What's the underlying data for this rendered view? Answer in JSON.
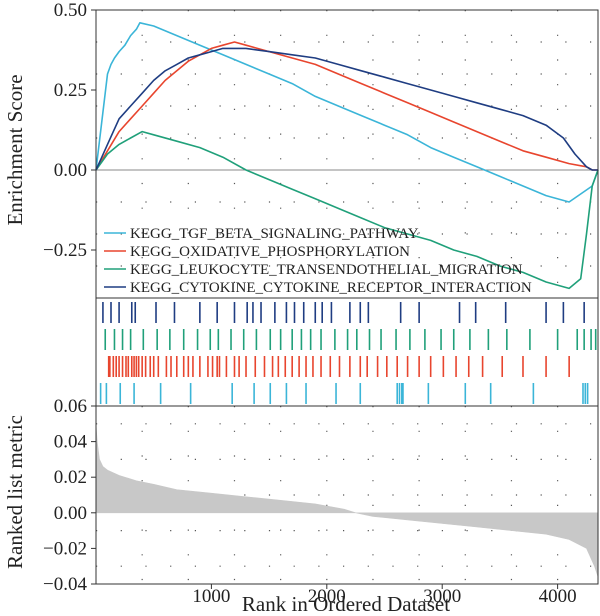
{
  "chart_data": [
    {
      "type": "line",
      "ylabel": "Enrichment Score",
      "xlim": [
        0,
        4350
      ],
      "ylim": [
        -0.4,
        0.5
      ],
      "yticks": [
        "0.50",
        "0.25",
        "0.00",
        "−0.25"
      ],
      "grid": "dotted",
      "legend_position": "bottom-left",
      "series": [
        {
          "name": "KEGG_TGF_BETA_SIGNALING_PATHWAY",
          "color": "#3bb5d8",
          "x": [
            0,
            20,
            40,
            60,
            80,
            100,
            130,
            160,
            200,
            250,
            300,
            350,
            380,
            500,
            700,
            900,
            1100,
            1300,
            1500,
            1700,
            1900,
            2100,
            2300,
            2500,
            2700,
            2900,
            3100,
            3300,
            3500,
            3700,
            3900,
            4100,
            4300,
            4350
          ],
          "y": [
            0.0,
            0.06,
            0.12,
            0.18,
            0.24,
            0.3,
            0.33,
            0.35,
            0.37,
            0.39,
            0.42,
            0.44,
            0.46,
            0.45,
            0.42,
            0.39,
            0.36,
            0.33,
            0.3,
            0.27,
            0.23,
            0.2,
            0.17,
            0.14,
            0.11,
            0.07,
            0.04,
            0.01,
            -0.02,
            -0.05,
            -0.08,
            -0.1,
            -0.05,
            0.0
          ]
        },
        {
          "name": "KEGG_OXIDATIVE_PHOSPHORYLATION",
          "color": "#e8452e",
          "x": [
            0,
            50,
            100,
            150,
            200,
            300,
            400,
            500,
            600,
            700,
            800,
            900,
            1000,
            1100,
            1200,
            1300,
            1500,
            1700,
            1900,
            2100,
            2300,
            2500,
            2700,
            2900,
            3100,
            3300,
            3500,
            3700,
            3900,
            4100,
            4250,
            4300,
            4350
          ],
          "y": [
            0.0,
            0.03,
            0.06,
            0.09,
            0.12,
            0.16,
            0.2,
            0.24,
            0.28,
            0.31,
            0.34,
            0.36,
            0.38,
            0.39,
            0.4,
            0.39,
            0.37,
            0.35,
            0.33,
            0.3,
            0.27,
            0.24,
            0.21,
            0.18,
            0.15,
            0.12,
            0.09,
            0.06,
            0.04,
            0.02,
            0.01,
            0.0,
            0.0
          ]
        },
        {
          "name": "KEGG_LEUKOCYTE_TRANSENDOTHELIAL_MIGRATION",
          "color": "#20a07a",
          "x": [
            0,
            100,
            200,
            300,
            400,
            500,
            700,
            900,
            1100,
            1300,
            1500,
            1700,
            1900,
            2100,
            2300,
            2500,
            2700,
            2900,
            3100,
            3300,
            3500,
            3700,
            3900,
            4100,
            4200,
            4250,
            4300,
            4350
          ],
          "y": [
            0.0,
            0.05,
            0.08,
            0.1,
            0.12,
            0.11,
            0.09,
            0.07,
            0.04,
            0.0,
            -0.03,
            -0.06,
            -0.09,
            -0.12,
            -0.15,
            -0.18,
            -0.2,
            -0.22,
            -0.25,
            -0.27,
            -0.3,
            -0.32,
            -0.35,
            -0.37,
            -0.34,
            -0.2,
            -0.05,
            0.0
          ]
        },
        {
          "name": "KEGG_CYTOKINE_CYTOKINE_RECEPTOR_INTERACTION",
          "color": "#1f3d82",
          "x": [
            0,
            50,
            100,
            150,
            200,
            300,
            400,
            500,
            600,
            700,
            800,
            900,
            1000,
            1100,
            1300,
            1500,
            1700,
            1900,
            2100,
            2300,
            2500,
            2700,
            2900,
            3100,
            3300,
            3500,
            3700,
            3900,
            4050,
            4150,
            4250,
            4300,
            4350
          ],
          "y": [
            0.0,
            0.04,
            0.08,
            0.12,
            0.16,
            0.2,
            0.24,
            0.28,
            0.31,
            0.33,
            0.35,
            0.36,
            0.37,
            0.38,
            0.38,
            0.37,
            0.36,
            0.35,
            0.33,
            0.31,
            0.29,
            0.27,
            0.25,
            0.23,
            0.21,
            0.19,
            0.17,
            0.14,
            0.1,
            0.05,
            0.01,
            0.0,
            0.0
          ]
        }
      ]
    },
    {
      "type": "barcode",
      "rows": [
        {
          "name": "KEGG_CYTOKINE_CYTOKINE_RECEPTOR_INTERACTION",
          "color": "#1f3d82",
          "positions": [
            60,
            130,
            200,
            310,
            340,
            520,
            680,
            900,
            1050,
            1200,
            1310,
            1360,
            1430,
            1550,
            1650,
            1720,
            1800,
            1900,
            1960,
            2040,
            2200,
            2290,
            2360,
            2640,
            2800,
            3150,
            3290,
            3550,
            3900,
            4050,
            4230
          ]
        },
        {
          "name": "KEGG_LEUKOCYTE_TRANSENDOTHELIAL_MIGRATION",
          "color": "#20a07a",
          "positions": [
            80,
            160,
            230,
            300,
            410,
            530,
            640,
            760,
            880,
            990,
            1060,
            1170,
            1280,
            1390,
            1510,
            1600,
            1700,
            1780,
            1860,
            1950,
            2070,
            2180,
            2260,
            2370,
            2470,
            2600,
            2720,
            2850,
            2990,
            3100,
            3240,
            3400,
            3560,
            3760,
            4000,
            4170,
            4230,
            4290,
            4330
          ]
        },
        {
          "name": "KEGG_OXIDATIVE_PHOSPHORYLATION",
          "color": "#e8452e",
          "positions": [
            110,
            120,
            150,
            175,
            200,
            230,
            260,
            280,
            310,
            330,
            350,
            370,
            400,
            430,
            470,
            500,
            540,
            610,
            650,
            700,
            760,
            800,
            840,
            900,
            970,
            1010,
            1050,
            1070,
            1130,
            1200,
            1240,
            1300,
            1380,
            1460,
            1530,
            1580,
            1640,
            1700,
            1760,
            1820,
            1880,
            1950,
            2030,
            2110,
            2200,
            2290,
            2350,
            2440,
            2520,
            2610,
            2700,
            2800,
            2900,
            3010,
            3120,
            3230,
            3350,
            3520,
            3700,
            3900,
            4100
          ]
        },
        {
          "name": "KEGG_TGF_BETA_SIGNALING_PATHWAY",
          "color": "#3bb5d8",
          "positions": [
            40,
            90,
            210,
            330,
            560,
            820,
            1180,
            1370,
            1510,
            1650,
            1820,
            2080,
            2290,
            2610,
            2630,
            2650,
            2660,
            2880,
            3200,
            3420,
            3790,
            4220,
            4240,
            4260
          ]
        }
      ]
    },
    {
      "type": "area",
      "xlabel": "Rank in Ordered Dataset",
      "ylabel": "Ranked list metric",
      "xlim": [
        0,
        4350
      ],
      "ylim": [
        -0.04,
        0.06
      ],
      "xticks": [
        "1000",
        "2000",
        "3000",
        "4000"
      ],
      "yticks": [
        "0.06",
        "0.04",
        "0.02",
        "0.00",
        "−0.02",
        "−0.04"
      ],
      "fill_color": "#c8c8c8",
      "x": [
        0,
        10,
        30,
        60,
        100,
        200,
        350,
        500,
        700,
        1000,
        1300,
        1600,
        1900,
        2150,
        2250,
        2400,
        2700,
        3000,
        3300,
        3600,
        3900,
        4100,
        4250,
        4320,
        4350
      ],
      "y": [
        0.05,
        0.04,
        0.03,
        0.026,
        0.024,
        0.021,
        0.018,
        0.016,
        0.013,
        0.011,
        0.009,
        0.007,
        0.005,
        0.002,
        0.0,
        -0.002,
        -0.004,
        -0.006,
        -0.008,
        -0.01,
        -0.012,
        -0.015,
        -0.02,
        -0.03,
        -0.036
      ]
    }
  ]
}
